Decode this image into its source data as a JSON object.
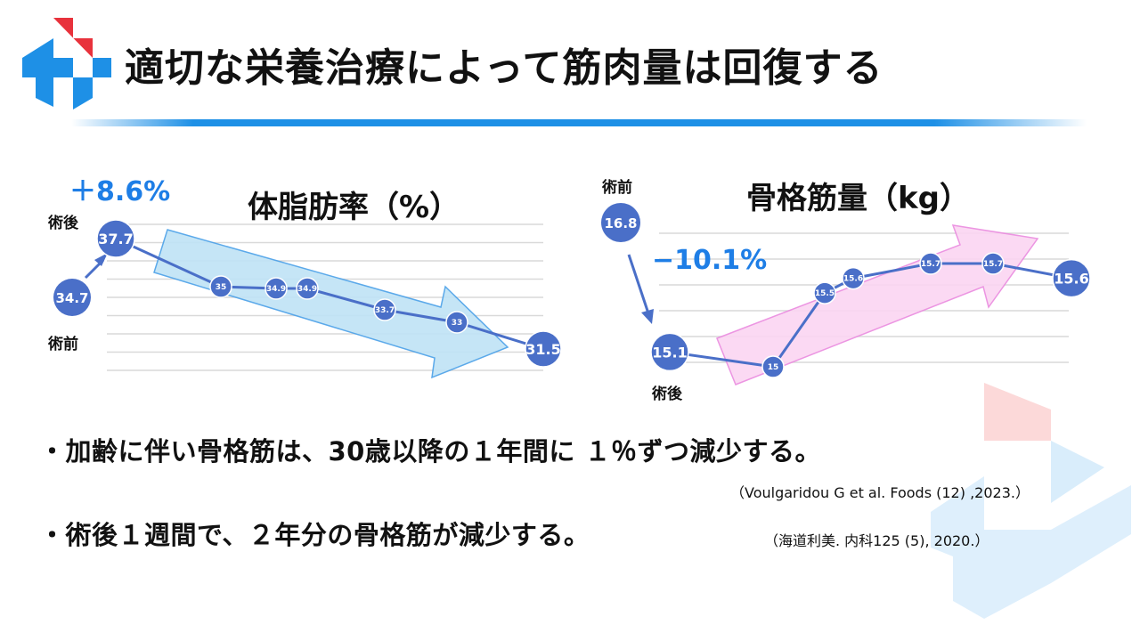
{
  "title": "適切な栄養治療によって筋肉量は回復する",
  "colors": {
    "accent_blue": "#1e90e6",
    "series_blue": "#4a6fc8",
    "logo_red": "#e8323c",
    "arrow_blue_fill": "#bfe3f6",
    "arrow_pink_fill": "#fbd5f2"
  },
  "charts": {
    "fat": {
      "title": "体脂肪率（%）",
      "change": "＋8.6%",
      "before_label": "術前",
      "after_label": "術後",
      "before_value": "34.7",
      "after_value": "37.7"
    },
    "muscle": {
      "title": "骨格筋量（kg）",
      "change": "−10.1%",
      "before_label": "術前",
      "after_label": "術後",
      "before_value": "16.8",
      "after_value": "15.1"
    }
  },
  "chart_data": [
    {
      "type": "line",
      "title": "体脂肪率（%）",
      "series": [
        {
          "values": [
            37.7,
            35,
            34.9,
            34.9,
            33.7,
            33,
            31.5
          ]
        }
      ],
      "labels": [
        "37.7",
        "35",
        "34.9",
        "34.9",
        "33.7",
        "33",
        "31.5"
      ],
      "annotations": [
        "＋8.6%",
        "術前",
        "術後",
        "34.7"
      ],
      "grid": true
    },
    {
      "type": "line",
      "title": "骨格筋量（kg）",
      "series": [
        {
          "values": [
            15.1,
            15,
            15.5,
            15.6,
            15.7,
            15.7,
            15.6
          ]
        }
      ],
      "labels": [
        "15.1",
        "15",
        "15.5",
        "15.6",
        "15.7",
        "15.7",
        "15.6"
      ],
      "annotations": [
        "−10.1%",
        "術前",
        "術後",
        "16.8"
      ],
      "grid": true
    }
  ],
  "bullets": [
    {
      "text": "・加齢に伴い骨格筋は、30歳以降の１年間に １％ずつ減少する。",
      "cite": "（Voulgaridou G et al. Foods (12) ,2023.）"
    },
    {
      "text": "・術後１週間で、２年分の骨格筋が減少する。",
      "cite": "（海道利美. 内科125 (5), 2020.）"
    }
  ]
}
